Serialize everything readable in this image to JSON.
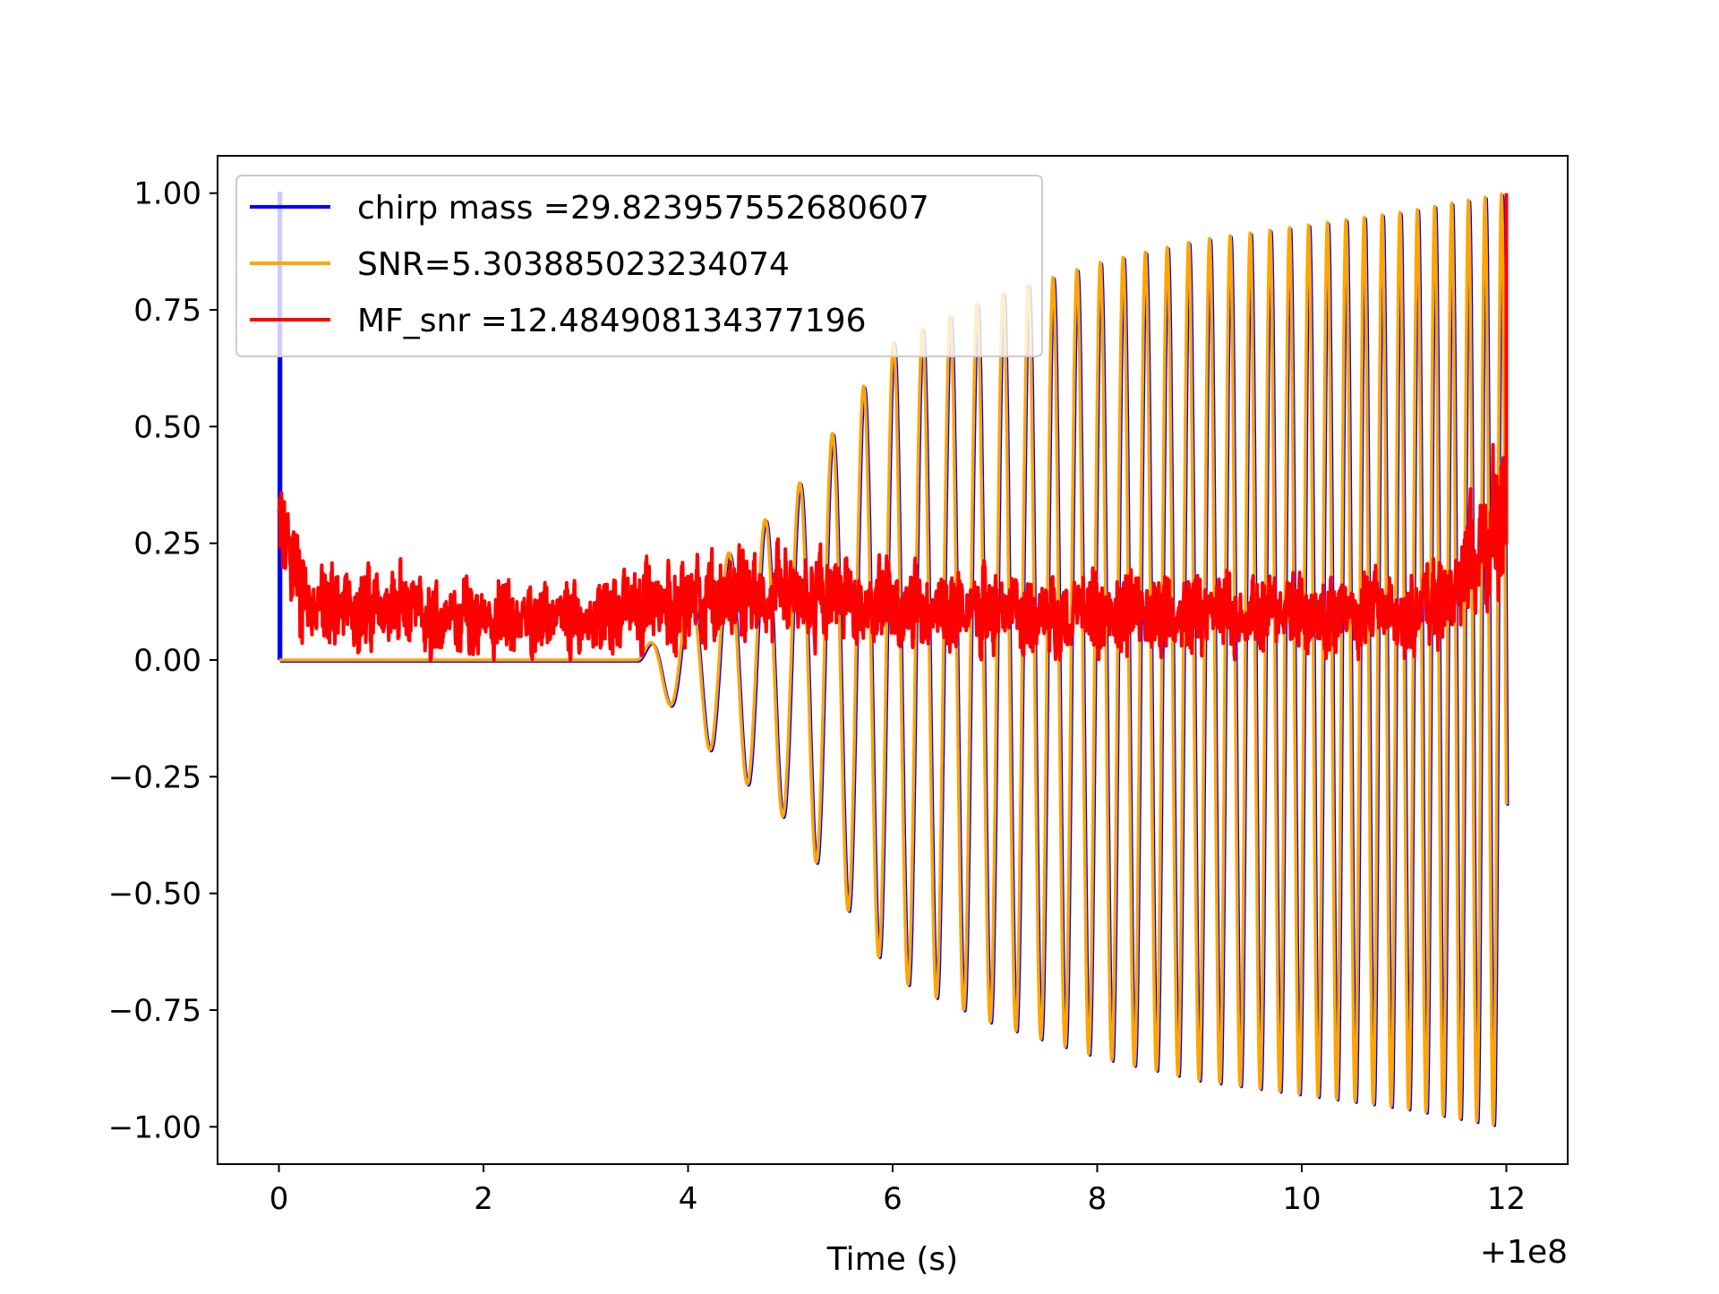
{
  "chart_data": {
    "type": "line",
    "xlabel": "Time (s)",
    "x_offset_label": "+1e8",
    "xlim": [
      -0.6,
      12.6
    ],
    "ylim": [
      -1.08,
      1.08
    ],
    "x_ticks": [
      0,
      2,
      4,
      6,
      8,
      10,
      12
    ],
    "x_tick_labels": [
      "0",
      "2",
      "4",
      "6",
      "8",
      "10",
      "12"
    ],
    "y_ticks": [
      1.0,
      0.75,
      0.5,
      0.25,
      0.0,
      -0.25,
      -0.5,
      -0.75,
      -1.0
    ],
    "y_tick_labels": [
      "1.00",
      "0.75",
      "0.50",
      "0.25",
      "0.00",
      "−0.25",
      "−0.50",
      "−0.75",
      "−1.00"
    ],
    "grid": false,
    "legend_position": "top-left",
    "series": [
      {
        "name": "chirp mass =29.823957552680607",
        "color": "#0000ff",
        "description_points": [
          [
            0,
            0
          ],
          [
            0,
            1.0
          ],
          [
            0.02,
            1.0
          ],
          [
            0.02,
            0
          ]
        ],
        "envelope": "same chirp waveform as orange series (drawn underneath)"
      },
      {
        "name": "SNR=5.303885023234074",
        "color": "#ffa500",
        "signal_start": 3.5,
        "signal_end": 12.0,
        "start_frequency_hz": 2.3,
        "end_frequency_hz": 6.3,
        "amplitude_points": [
          [
            3.5,
            0.0
          ],
          [
            4.0,
            0.15
          ],
          [
            5.0,
            0.35
          ],
          [
            6.0,
            0.68
          ],
          [
            7.0,
            0.78
          ],
          [
            8.0,
            0.85
          ],
          [
            9.0,
            0.9
          ],
          [
            10.0,
            0.93
          ],
          [
            11.0,
            0.96
          ],
          [
            12.0,
            1.0
          ]
        ]
      },
      {
        "name": "MF_snr =12.484908134377196",
        "color": "#ff0000",
        "baseline_points": [
          [
            0,
            0.28
          ],
          [
            0.3,
            0.12
          ],
          [
            1.0,
            0.11
          ],
          [
            2.0,
            0.09
          ],
          [
            3.0,
            0.08
          ],
          [
            3.5,
            0.12
          ],
          [
            4.0,
            0.13
          ],
          [
            5.0,
            0.13
          ],
          [
            6.0,
            0.12
          ],
          [
            7.0,
            0.1
          ],
          [
            8.0,
            0.1
          ],
          [
            9.0,
            0.1
          ],
          [
            10.0,
            0.1
          ],
          [
            11.0,
            0.1
          ],
          [
            11.5,
            0.14
          ],
          [
            11.8,
            0.24
          ],
          [
            11.95,
            0.35
          ]
        ],
        "peak": [
          12.0,
          1.0
        ]
      }
    ]
  }
}
